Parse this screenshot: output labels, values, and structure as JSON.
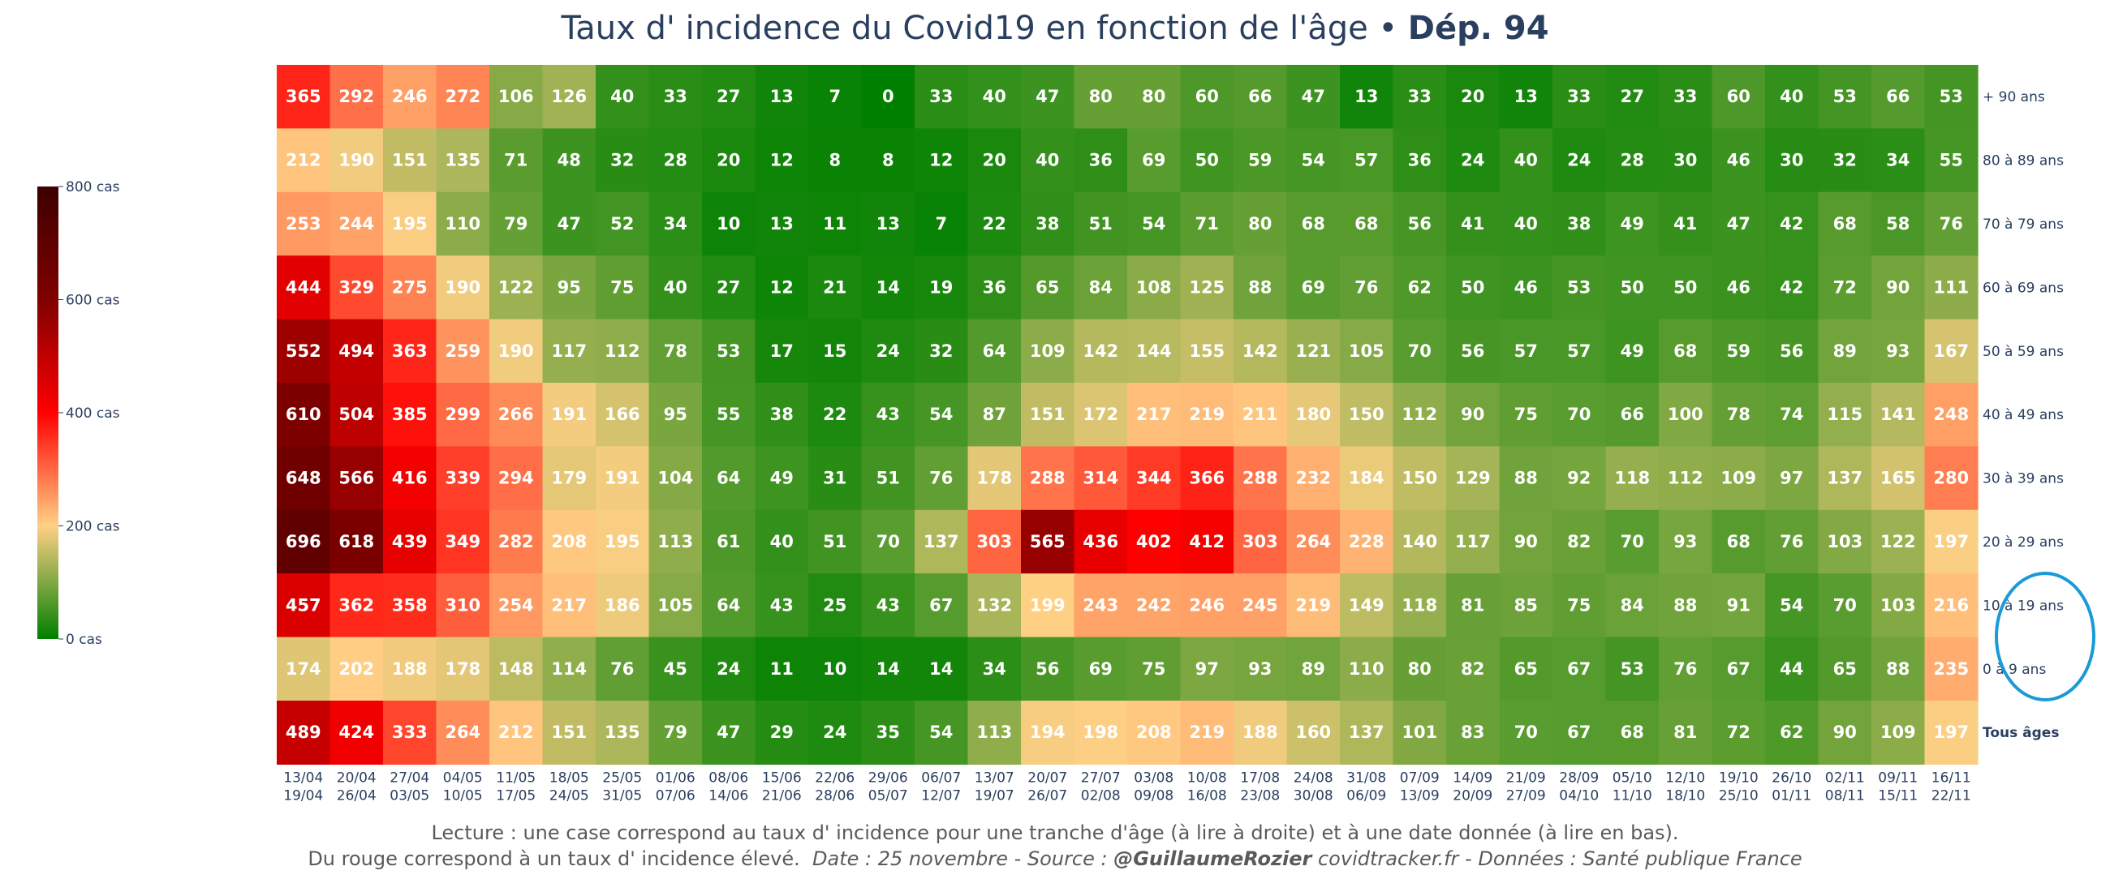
{
  "title": {
    "main": "Taux d' incidence du Covid19 en fonction de l'âge",
    "separator": " • ",
    "bold": "Dép. 94"
  },
  "footer": {
    "line1": "Lecture : une case correspond au taux d' incidence pour une tranche d'âge (à lire à droite) et à une date donnée (à lire en bas).",
    "line2_normal": "Du rouge correspond à un taux d' incidence élevé.  ",
    "line2_italic_a": "Date : 25 novembre - Source : ",
    "line2_bold_italic": "@GuillaumeRozier",
    "line2_italic_b": " covidtracker.fr - Données : Santé publique France"
  },
  "colorbar": {
    "ticks": [
      {
        "value": 800,
        "label": "800 cas"
      },
      {
        "value": 600,
        "label": "600 cas"
      },
      {
        "value": 400,
        "label": "400 cas"
      },
      {
        "value": 200,
        "label": "200 cas"
      },
      {
        "value": 0,
        "label": "0 cas"
      }
    ],
    "colors": [
      "#008000",
      "#FFD085",
      "#FF0000",
      "#800000",
      "#3D0000"
    ]
  },
  "chart_data": {
    "type": "heatmap",
    "x": [
      {
        "start": "13/04",
        "end": "19/04"
      },
      {
        "start": "20/04",
        "end": "26/04"
      },
      {
        "start": "27/04",
        "end": "03/05"
      },
      {
        "start": "04/05",
        "end": "10/05"
      },
      {
        "start": "11/05",
        "end": "17/05"
      },
      {
        "start": "18/05",
        "end": "24/05"
      },
      {
        "start": "25/05",
        "end": "31/05"
      },
      {
        "start": "01/06",
        "end": "07/06"
      },
      {
        "start": "08/06",
        "end": "14/06"
      },
      {
        "start": "15/06",
        "end": "21/06"
      },
      {
        "start": "22/06",
        "end": "28/06"
      },
      {
        "start": "29/06",
        "end": "05/07"
      },
      {
        "start": "06/07",
        "end": "12/07"
      },
      {
        "start": "13/07",
        "end": "19/07"
      },
      {
        "start": "20/07",
        "end": "26/07"
      },
      {
        "start": "27/07",
        "end": "02/08"
      },
      {
        "start": "03/08",
        "end": "09/08"
      },
      {
        "start": "10/08",
        "end": "16/08"
      },
      {
        "start": "17/08",
        "end": "23/08"
      },
      {
        "start": "24/08",
        "end": "30/08"
      },
      {
        "start": "31/08",
        "end": "06/09"
      },
      {
        "start": "07/09",
        "end": "13/09"
      },
      {
        "start": "14/09",
        "end": "20/09"
      },
      {
        "start": "21/09",
        "end": "27/09"
      },
      {
        "start": "28/09",
        "end": "04/10"
      },
      {
        "start": "05/10",
        "end": "11/10"
      },
      {
        "start": "12/10",
        "end": "18/10"
      },
      {
        "start": "19/10",
        "end": "25/10"
      },
      {
        "start": "26/10",
        "end": "01/11"
      },
      {
        "start": "02/11",
        "end": "08/11"
      },
      {
        "start": "09/11",
        "end": "15/11"
      },
      {
        "start": "16/11",
        "end": "22/11"
      }
    ],
    "rows": [
      {
        "label": "+ 90 ans",
        "bold": false,
        "values": [
          365,
          292,
          246,
          272,
          106,
          126,
          40,
          33,
          27,
          13,
          7,
          0,
          33,
          40,
          47,
          80,
          80,
          60,
          66,
          47,
          13,
          33,
          20,
          13,
          33,
          27,
          33,
          60,
          40,
          53,
          66,
          53
        ]
      },
      {
        "label": "80 à 89 ans",
        "bold": false,
        "values": [
          212,
          190,
          151,
          135,
          71,
          48,
          32,
          28,
          20,
          12,
          8,
          8,
          12,
          20,
          40,
          36,
          69,
          50,
          59,
          54,
          57,
          36,
          24,
          40,
          24,
          28,
          30,
          46,
          30,
          32,
          34,
          55
        ]
      },
      {
        "label": "70 à 79 ans",
        "bold": false,
        "values": [
          253,
          244,
          195,
          110,
          79,
          47,
          52,
          34,
          10,
          13,
          11,
          13,
          7,
          22,
          38,
          51,
          54,
          71,
          80,
          68,
          68,
          56,
          41,
          40,
          38,
          49,
          41,
          47,
          42,
          68,
          58,
          76
        ]
      },
      {
        "label": "60 à 69 ans",
        "bold": false,
        "values": [
          444,
          329,
          275,
          190,
          122,
          95,
          75,
          40,
          27,
          12,
          21,
          14,
          19,
          36,
          65,
          84,
          108,
          125,
          88,
          69,
          76,
          62,
          50,
          46,
          53,
          50,
          50,
          46,
          42,
          72,
          90,
          111
        ]
      },
      {
        "label": "50 à 59 ans",
        "bold": false,
        "values": [
          552,
          494,
          363,
          259,
          190,
          117,
          112,
          78,
          53,
          17,
          15,
          24,
          32,
          64,
          109,
          142,
          144,
          155,
          142,
          121,
          105,
          70,
          56,
          57,
          57,
          49,
          68,
          59,
          56,
          89,
          93,
          167
        ]
      },
      {
        "label": "40 à 49 ans",
        "bold": false,
        "values": [
          610,
          504,
          385,
          299,
          266,
          191,
          166,
          95,
          55,
          38,
          22,
          43,
          54,
          87,
          151,
          172,
          217,
          219,
          211,
          180,
          150,
          112,
          90,
          75,
          70,
          66,
          100,
          78,
          74,
          115,
          141,
          248
        ]
      },
      {
        "label": "30 à 39 ans",
        "bold": false,
        "values": [
          648,
          566,
          416,
          339,
          294,
          179,
          191,
          104,
          64,
          49,
          31,
          51,
          76,
          178,
          288,
          314,
          344,
          366,
          288,
          232,
          184,
          150,
          129,
          88,
          92,
          118,
          112,
          109,
          97,
          137,
          165,
          280
        ]
      },
      {
        "label": "20 à 29 ans",
        "bold": false,
        "values": [
          696,
          618,
          439,
          349,
          282,
          208,
          195,
          113,
          61,
          40,
          51,
          70,
          137,
          303,
          565,
          436,
          402,
          412,
          303,
          264,
          228,
          140,
          117,
          90,
          82,
          70,
          93,
          68,
          76,
          103,
          122,
          197
        ]
      },
      {
        "label": "10 à 19 ans",
        "bold": false,
        "values": [
          457,
          362,
          358,
          310,
          254,
          217,
          186,
          105,
          64,
          43,
          25,
          43,
          67,
          132,
          199,
          243,
          242,
          246,
          245,
          219,
          149,
          118,
          81,
          85,
          75,
          84,
          88,
          91,
          54,
          70,
          103,
          216
        ]
      },
      {
        "label": "0 à 9 ans",
        "bold": false,
        "values": [
          174,
          202,
          188,
          178,
          148,
          114,
          76,
          45,
          24,
          11,
          10,
          14,
          14,
          34,
          56,
          69,
          75,
          97,
          93,
          89,
          110,
          80,
          82,
          65,
          67,
          53,
          76,
          67,
          44,
          65,
          88,
          235
        ]
      },
      {
        "label": "Tous âges",
        "bold": true,
        "values": [
          489,
          424,
          333,
          264,
          212,
          151,
          135,
          79,
          47,
          29,
          24,
          35,
          54,
          113,
          194,
          198,
          208,
          219,
          188,
          160,
          137,
          101,
          83,
          70,
          67,
          68,
          81,
          72,
          62,
          90,
          109,
          197
        ]
      }
    ],
    "zlim": [
      0,
      800
    ]
  },
  "annotation": {
    "color": "#1a9ad6"
  }
}
